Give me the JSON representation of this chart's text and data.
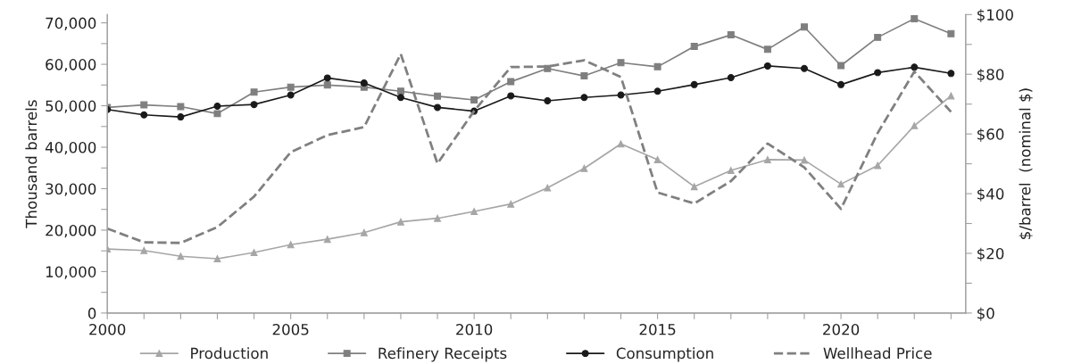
{
  "chart_data": {
    "type": "line",
    "ylabel": "Thousand barrels",
    "y2label": "$/barrel  (nominal $)",
    "x": [
      2000,
      2001,
      2002,
      2003,
      2004,
      2005,
      2006,
      2007,
      2008,
      2009,
      2010,
      2011,
      2012,
      2013,
      2014,
      2015,
      2016,
      2017,
      2018,
      2019,
      2020,
      2021,
      2022,
      2023
    ],
    "xlim": [
      2000,
      2023.4
    ],
    "xticks": [
      2000,
      {
        "value": 2001,
        "label": null
      },
      {
        "value": 2002,
        "label": null
      },
      {
        "value": 2003,
        "label": null
      },
      {
        "value": 2004,
        "label": null
      },
      2005,
      {
        "value": 2006,
        "label": null
      },
      {
        "value": 2007,
        "label": null
      },
      {
        "value": 2008,
        "label": null
      },
      {
        "value": 2009,
        "label": null
      },
      2010,
      {
        "value": 2011,
        "label": null
      },
      {
        "value": 2012,
        "label": null
      },
      {
        "value": 2013,
        "label": null
      },
      {
        "value": 2014,
        "label": null
      },
      2015,
      {
        "value": 2016,
        "label": null
      },
      {
        "value": 2017,
        "label": null
      },
      {
        "value": 2018,
        "label": null
      },
      {
        "value": 2019,
        "label": null
      },
      2020,
      {
        "value": 2021,
        "label": null
      },
      {
        "value": 2022,
        "label": null
      },
      {
        "value": 2023,
        "label": null
      }
    ],
    "ylim": [
      0,
      72000
    ],
    "yticks": [
      {
        "value": 0,
        "label": "0"
      },
      {
        "value": 5000,
        "label": null
      },
      {
        "value": 10000,
        "label": "10,000"
      },
      {
        "value": 15000,
        "label": null
      },
      {
        "value": 20000,
        "label": "20,000"
      },
      {
        "value": 25000,
        "label": null
      },
      {
        "value": 30000,
        "label": "30,000"
      },
      {
        "value": 35000,
        "label": null
      },
      {
        "value": 40000,
        "label": "40,000"
      },
      {
        "value": 45000,
        "label": null
      },
      {
        "value": 50000,
        "label": "50,000"
      },
      {
        "value": 55000,
        "label": null
      },
      {
        "value": 60000,
        "label": "60,000"
      },
      {
        "value": 65000,
        "label": null
      },
      {
        "value": 70000,
        "label": "70,000"
      }
    ],
    "y2lim": [
      0,
      100
    ],
    "y2ticks": [
      {
        "value": 0,
        "label": "$0"
      },
      {
        "value": 10,
        "label": null
      },
      {
        "value": 20,
        "label": "$20"
      },
      {
        "value": 30,
        "label": null
      },
      {
        "value": 40,
        "label": "$40"
      },
      {
        "value": 50,
        "label": null
      },
      {
        "value": 60,
        "label": "$60"
      },
      {
        "value": 70,
        "label": null
      },
      {
        "value": 80,
        "label": "$80"
      },
      {
        "value": 90,
        "label": null
      },
      {
        "value": 100,
        "label": "$100"
      }
    ],
    "grid": false,
    "legend": "bottom",
    "series": [
      {
        "name": "Production",
        "color": "#a6a6a6",
        "marker": "triangle",
        "line_style": "solid",
        "values": [
          15450,
          15100,
          13700,
          13100,
          14600,
          16500,
          17800,
          19400,
          22000,
          22850,
          24500,
          26300,
          30200,
          34900,
          40800,
          37000,
          30500,
          34400,
          37000,
          36900,
          31100,
          35600,
          45200,
          52400
        ]
      },
      {
        "name": "Refinery Receipts",
        "color": "#7f7f7f",
        "marker": "square",
        "line_style": "solid",
        "values": [
          49600,
          50200,
          49800,
          48100,
          53300,
          54500,
          55000,
          54500,
          53500,
          52300,
          51400,
          55800,
          59000,
          57200,
          60400,
          59400,
          64300,
          67100,
          63600,
          69000,
          59700,
          66500,
          71000,
          67400
        ]
      },
      {
        "name": "Consumption",
        "color": "#1a1a1a",
        "marker": "circle",
        "line_style": "solid",
        "values": [
          49100,
          47800,
          47300,
          49900,
          50300,
          52600,
          56700,
          55500,
          52000,
          49600,
          48700,
          52400,
          51200,
          52000,
          52600,
          53500,
          55100,
          56800,
          59600,
          59000,
          55100,
          58000,
          59300,
          57800
        ]
      },
      {
        "name": "Wellhead Price",
        "color": "#808080",
        "marker": "none",
        "line_style": "dashed",
        "axis": "y2",
        "values": [
          28.3,
          23.7,
          23.5,
          28.8,
          39.0,
          53.9,
          59.6,
          62.3,
          86.8,
          50.1,
          67.7,
          82.4,
          82.6,
          84.7,
          79.1,
          40.4,
          36.7,
          44.2,
          56.8,
          48.8,
          34.9,
          60.3,
          80.9,
          67.4
        ]
      }
    ]
  }
}
